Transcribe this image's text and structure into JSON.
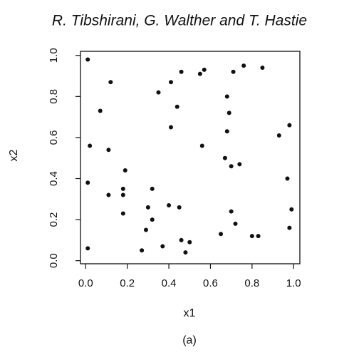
{
  "header": {
    "title": "R. Tibshirani, G. Walther and T. Hastie"
  },
  "chart_data": {
    "type": "scatter",
    "xlabel": "x1",
    "ylabel": "x2",
    "caption": "(a)",
    "color": "#111111",
    "xlim": [
      -0.025,
      1.03
    ],
    "ylim": [
      -0.015,
      1.02
    ],
    "xticks": [
      {
        "value": 0,
        "label": "0.0"
      },
      {
        "value": 0.2,
        "label": "0.2"
      },
      {
        "value": 0.4,
        "label": "0.4"
      },
      {
        "value": 0.6,
        "label": "0.6"
      },
      {
        "value": 0.8,
        "label": "0.8"
      },
      {
        "value": 1,
        "label": "1.0"
      }
    ],
    "yticks": [
      {
        "value": 0,
        "label": "0.0"
      },
      {
        "value": 0.2,
        "label": "0.2"
      },
      {
        "value": 0.4,
        "label": "0.4"
      },
      {
        "value": 0.6,
        "label": "0.6"
      },
      {
        "value": 0.8,
        "label": "0.8"
      },
      {
        "value": 1,
        "label": "1.0"
      }
    ],
    "x": [
      0.01,
      0.12,
      0.07,
      0.02,
      0.11,
      0.19,
      0.01,
      0.11,
      0.18,
      0.18,
      0.18,
      0.32,
      0.3,
      0.32,
      0.29,
      0.27,
      0.37,
      0.4,
      0.45,
      0.41,
      0.35,
      0.44,
      0.41,
      0.46,
      0.46,
      0.48,
      0.5,
      0.55,
      0.57,
      0.56,
      0.65,
      0.67,
      0.68,
      0.69,
      0.68,
      0.7,
      0.71,
      0.74,
      0.76,
      0.7,
      0.72,
      0.8,
      0.83,
      0.85,
      0.93,
      0.97,
      0.98,
      0.98,
      0.99,
      0.01
    ],
    "values": [
      0.98,
      0.87,
      0.73,
      0.56,
      0.54,
      0.44,
      0.38,
      0.32,
      0.35,
      0.32,
      0.23,
      0.35,
      0.26,
      0.2,
      0.15,
      0.05,
      0.07,
      0.27,
      0.26,
      0.87,
      0.82,
      0.75,
      0.65,
      0.92,
      0.1,
      0.04,
      0.09,
      0.91,
      0.93,
      0.56,
      0.13,
      0.5,
      0.8,
      0.72,
      0.63,
      0.46,
      0.92,
      0.47,
      0.95,
      0.24,
      0.18,
      0.12,
      0.12,
      0.94,
      0.61,
      0.4,
      0.66,
      0.16,
      0.25,
      0.06
    ]
  }
}
